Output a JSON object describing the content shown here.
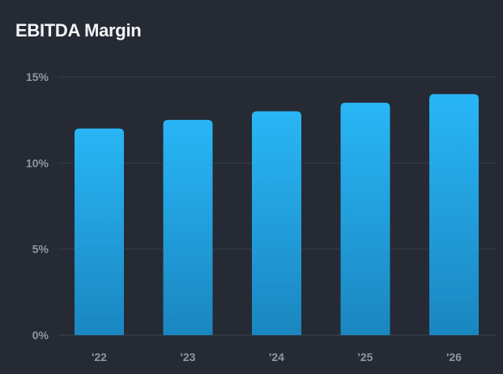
{
  "chart_data": {
    "type": "bar",
    "title": "EBITDA Margin",
    "categories": [
      "'22",
      "'23",
      "'24",
      "'25",
      "'26"
    ],
    "values": [
      12,
      12.5,
      13,
      13.5,
      14
    ],
    "ylim": [
      0,
      15
    ],
    "yticks": [
      0,
      5,
      10,
      15
    ],
    "ytick_labels": [
      "0%",
      "5%",
      "10%",
      "15%"
    ],
    "grid": true,
    "legend": "none",
    "colors": {
      "background": "#252a34",
      "bar_top": "#29b6f6",
      "bar_bottom": "#1a86c0",
      "tick_text": "#8f97a4",
      "title_text": "#f2f4f8"
    }
  }
}
